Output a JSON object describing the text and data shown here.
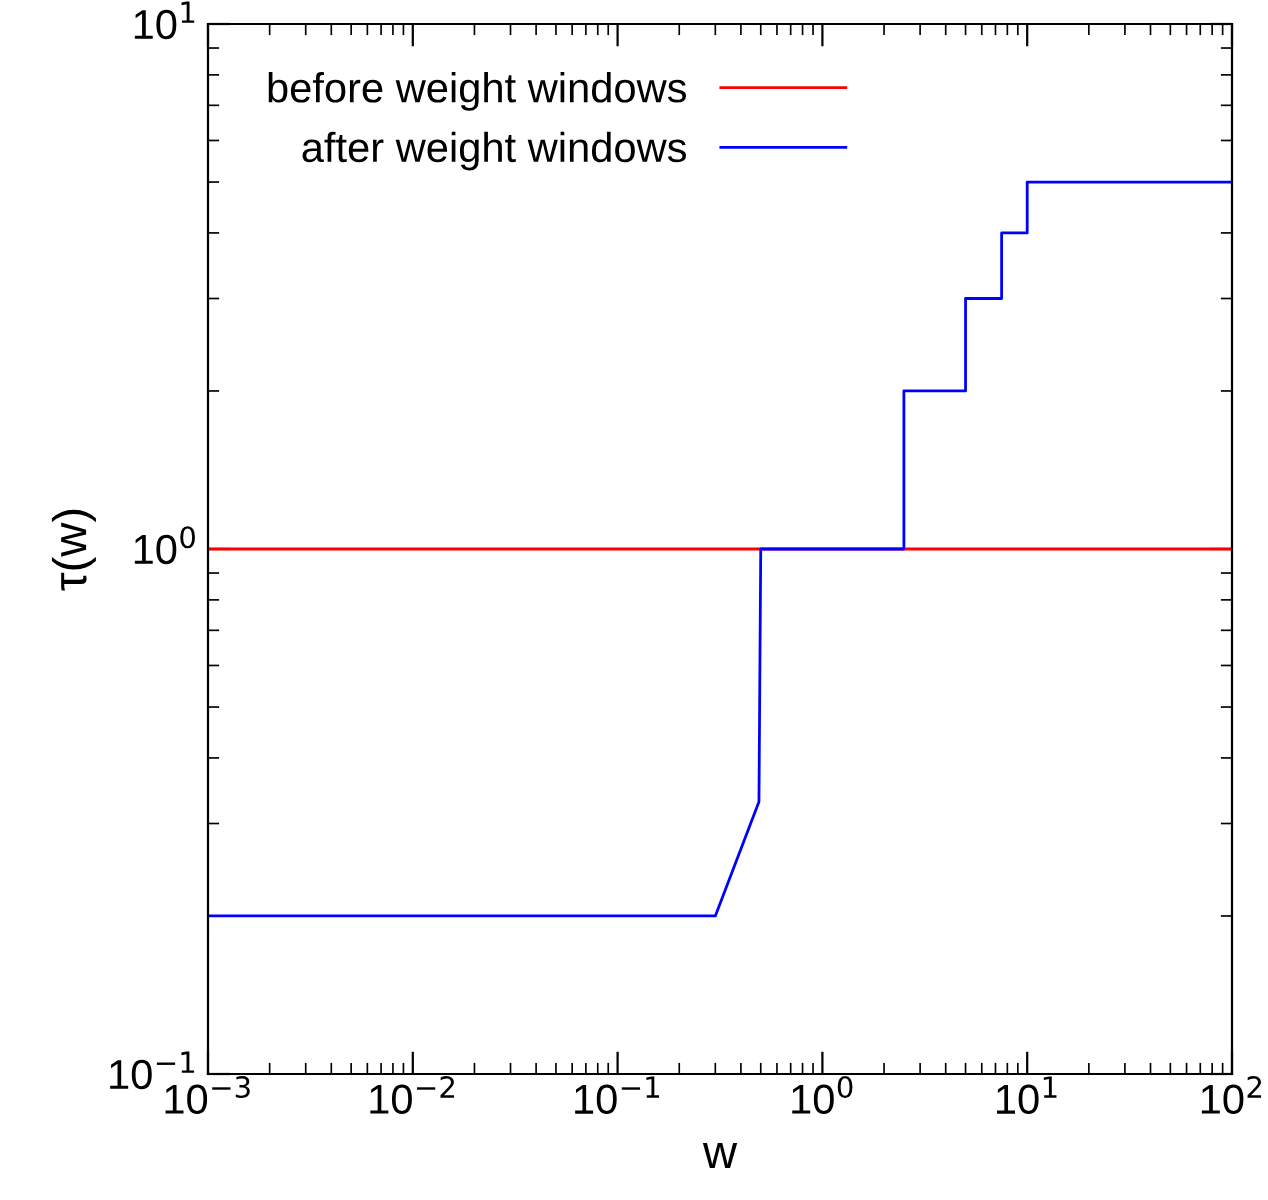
{
  "chart_data": {
    "type": "line",
    "xlabel": "w",
    "ylabel": "τ(w)",
    "log": "xy",
    "xlim": [
      0.001,
      100
    ],
    "ylim": [
      0.1,
      10
    ],
    "xticks": [
      {
        "value": 0.001,
        "label": "10$^{−3}$"
      },
      {
        "value": 0.01,
        "label": "10$^{−2}$"
      },
      {
        "value": 0.1,
        "label": "10$^{−1}$"
      },
      {
        "value": 1,
        "label": "10$^{0}$"
      },
      {
        "value": 10,
        "label": "10$^{1}$"
      },
      {
        "value": 100,
        "label": "10$^{2}$"
      }
    ],
    "yticks": [
      {
        "value": 0.1,
        "label": "10$^{−1}$"
      },
      {
        "value": 1,
        "label": "10$^{0}$"
      },
      {
        "value": 10,
        "label": "10$^{1}$"
      }
    ],
    "legend": "top left",
    "grid": false,
    "marker": "none",
    "line_style": "solid",
    "series": [
      {
        "name": "before weight windows",
        "color": "#ff0000",
        "x": [
          0.001,
          100
        ],
        "values": [
          1,
          1
        ]
      },
      {
        "name": "after weight windows",
        "color": "#0000ff",
        "x": [
          0.001,
          0.3,
          0.49,
          0.5,
          2.5,
          2.5,
          5,
          5,
          7.5,
          7.5,
          10,
          10,
          100
        ],
        "values": [
          0.2,
          0.2,
          0.33,
          1,
          1,
          2,
          2,
          3,
          3,
          4,
          4,
          5,
          5
        ]
      }
    ]
  }
}
